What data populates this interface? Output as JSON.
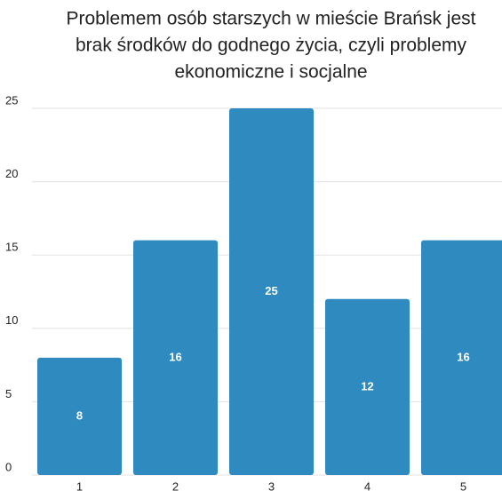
{
  "chart_data": {
    "type": "bar",
    "title": [
      "Problemem osób starszych w mieście Brańsk jest",
      "brak środków do godnego życia, czyli problemy",
      "ekonomiczne i socjalne"
    ],
    "categories": [
      "1",
      "2",
      "3",
      "4",
      "5"
    ],
    "values": [
      8,
      16,
      25,
      12,
      16
    ],
    "color": "#2f8bbf",
    "ylim": [
      0,
      25
    ],
    "yticks": [
      0,
      5,
      10,
      15,
      20,
      25
    ],
    "grid": true
  }
}
